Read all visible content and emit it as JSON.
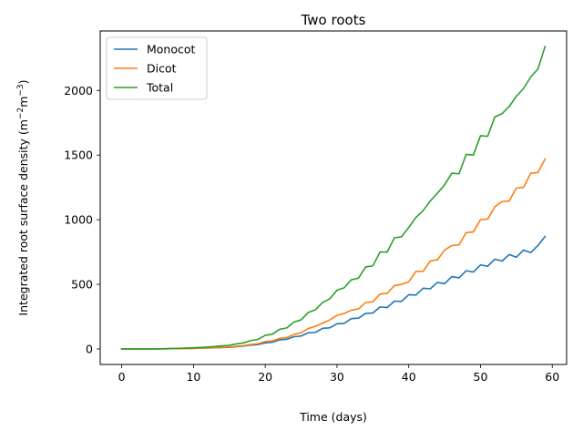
{
  "chart_data": {
    "type": "line",
    "title": "Two roots",
    "xlabel": "Time (days)",
    "ylabel": "Integrated root surface density (m",
    "ylabel_sup1": "−2",
    "ylabel_mid": "m",
    "ylabel_sup2": "−3",
    "ylabel_end": ")",
    "xlim": [
      -3,
      62
    ],
    "ylim": [
      -120,
      2460
    ],
    "xticks": [
      0,
      10,
      20,
      30,
      40,
      50,
      60
    ],
    "yticks": [
      0,
      500,
      1000,
      1500,
      2000
    ],
    "legend_position": "upper left",
    "grid": false,
    "x": [
      0,
      1,
      2,
      3,
      4,
      5,
      6,
      7,
      8,
      9,
      10,
      11,
      12,
      13,
      14,
      15,
      16,
      17,
      18,
      19,
      20,
      21,
      22,
      23,
      24,
      25,
      26,
      27,
      28,
      29,
      30,
      31,
      32,
      33,
      34,
      35,
      36,
      37,
      38,
      39,
      40,
      41,
      42,
      43,
      44,
      45,
      46,
      47,
      48,
      49,
      50,
      51,
      52,
      53,
      54,
      55,
      56,
      57,
      58,
      59
    ],
    "series": [
      {
        "name": "Monocot",
        "color": "#1f77b4",
        "values": [
          0,
          0,
          0,
          0,
          0,
          0,
          1,
          2,
          3,
          4,
          5,
          6,
          7,
          9,
          11,
          13,
          18,
          22,
          30,
          34,
          47,
          52,
          70,
          75,
          95,
          100,
          125,
          128,
          160,
          163,
          195,
          198,
          235,
          238,
          275,
          278,
          325,
          320,
          370,
          368,
          420,
          417,
          470,
          465,
          515,
          505,
          560,
          550,
          605,
          595,
          650,
          640,
          695,
          680,
          730,
          710,
          765,
          745,
          800,
          870
        ]
      },
      {
        "name": "Dicot",
        "color": "#ff7f0e",
        "values": [
          0,
          0,
          0,
          0,
          0,
          1,
          1,
          2,
          2,
          3,
          4,
          6,
          8,
          10,
          13,
          16,
          21,
          25,
          35,
          40,
          58,
          62,
          82,
          88,
          113,
          125,
          158,
          175,
          200,
          225,
          260,
          275,
          300,
          310,
          360,
          365,
          425,
          430,
          490,
          500,
          520,
          600,
          600,
          680,
          690,
          765,
          800,
          805,
          900,
          905,
          1000,
          1005,
          1100,
          1140,
          1145,
          1245,
          1250,
          1360,
          1365,
          1470
        ]
      },
      {
        "name": "Total",
        "color": "#2ca02c",
        "values": [
          0,
          0,
          0,
          0,
          0,
          1,
          2,
          4,
          5,
          7,
          9,
          12,
          15,
          19,
          24,
          29,
          39,
          47,
          65,
          74,
          105,
          114,
          152,
          163,
          208,
          225,
          283,
          303,
          360,
          388,
          455,
          473,
          535,
          548,
          635,
          643,
          750,
          750,
          860,
          868,
          940,
          1017,
          1070,
          1145,
          1205,
          1270,
          1360,
          1355,
          1505,
          1500,
          1650,
          1645,
          1795,
          1820,
          1875,
          1955,
          2015,
          2105,
          2165,
          2340
        ]
      }
    ]
  }
}
